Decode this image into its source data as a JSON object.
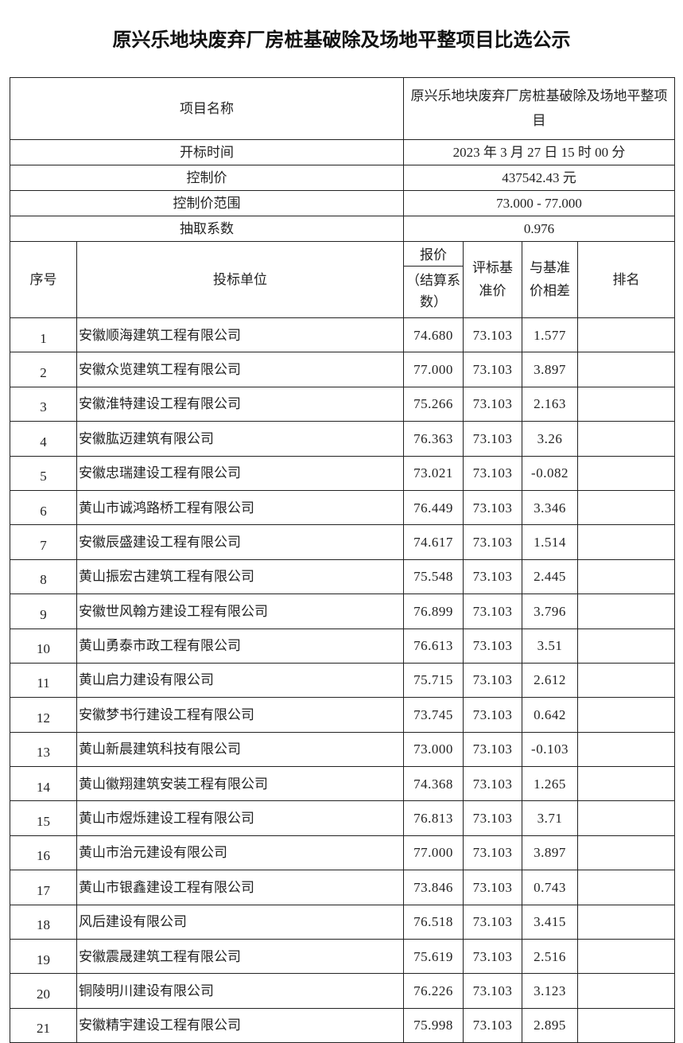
{
  "title": "原兴乐地块废弃厂房桩基破除及场地平整项目比选公示",
  "info": {
    "project_name_label": "项目名称",
    "project_name_value": "原兴乐地块废弃厂房桩基破除及场地平整项目",
    "open_time_label": "开标时间",
    "open_time_value": "2023 年 3 月 27 日  15 时 00 分",
    "control_price_label": "控制价",
    "control_price_value": "437542.43 元",
    "control_range_label": "控制价范围",
    "control_range_value": "73.000 - 77.000",
    "coefficient_label": "抽取系数",
    "coefficient_value": "0.976"
  },
  "headers": {
    "seq": "序号",
    "bidder": "投标单位",
    "price_top": "报价",
    "price_bottom": "（结算系数）",
    "base": "评标基准价",
    "diff": "与基准价相差",
    "rank": "排名"
  },
  "rows": [
    {
      "seq": "1",
      "bidder": "安徽顺海建筑工程有限公司",
      "price": "74.680",
      "base": "73.103",
      "diff": "1.577",
      "rank": ""
    },
    {
      "seq": "2",
      "bidder": "安徽众览建筑工程有限公司",
      "price": "77.000",
      "base": "73.103",
      "diff": "3.897",
      "rank": ""
    },
    {
      "seq": "3",
      "bidder": "安徽淮特建设工程有限公司",
      "price": "75.266",
      "base": "73.103",
      "diff": "2.163",
      "rank": ""
    },
    {
      "seq": "4",
      "bidder": "安徽肱迈建筑有限公司",
      "price": "76.363",
      "base": "73.103",
      "diff": "3.26",
      "rank": ""
    },
    {
      "seq": "5",
      "bidder": "安徽忠瑞建设工程有限公司",
      "price": "73.021",
      "base": "73.103",
      "diff": "-0.082",
      "rank": ""
    },
    {
      "seq": "6",
      "bidder": "黄山市诚鸿路桥工程有限公司",
      "price": "76.449",
      "base": "73.103",
      "diff": "3.346",
      "rank": ""
    },
    {
      "seq": "7",
      "bidder": "安徽辰盛建设工程有限公司",
      "price": "74.617",
      "base": "73.103",
      "diff": "1.514",
      "rank": ""
    },
    {
      "seq": "8",
      "bidder": "黄山振宏古建筑工程有限公司",
      "price": "75.548",
      "base": "73.103",
      "diff": "2.445",
      "rank": ""
    },
    {
      "seq": "9",
      "bidder": "安徽世风翰方建设工程有限公司",
      "price": "76.899",
      "base": "73.103",
      "diff": "3.796",
      "rank": ""
    },
    {
      "seq": "10",
      "bidder": "黄山勇泰市政工程有限公司",
      "price": "76.613",
      "base": "73.103",
      "diff": "3.51",
      "rank": ""
    },
    {
      "seq": "11",
      "bidder": "黄山启力建设有限公司",
      "price": "75.715",
      "base": "73.103",
      "diff": "2.612",
      "rank": ""
    },
    {
      "seq": "12",
      "bidder": "安徽梦书行建设工程有限公司",
      "price": "73.745",
      "base": "73.103",
      "diff": "0.642",
      "rank": ""
    },
    {
      "seq": "13",
      "bidder": "黄山新晨建筑科技有限公司",
      "price": "73.000",
      "base": "73.103",
      "diff": "-0.103",
      "rank": ""
    },
    {
      "seq": "14",
      "bidder": "黄山徽翔建筑安装工程有限公司",
      "price": "74.368",
      "base": "73.103",
      "diff": "1.265",
      "rank": ""
    },
    {
      "seq": "15",
      "bidder": "黄山市煜烁建设工程有限公司",
      "price": "76.813",
      "base": "73.103",
      "diff": "3.71",
      "rank": ""
    },
    {
      "seq": "16",
      "bidder": "黄山市治元建设有限公司",
      "price": "77.000",
      "base": "73.103",
      "diff": "3.897",
      "rank": ""
    },
    {
      "seq": "17",
      "bidder": "黄山市银鑫建设工程有限公司",
      "price": "73.846",
      "base": "73.103",
      "diff": "0.743",
      "rank": ""
    },
    {
      "seq": "18",
      "bidder": "风后建设有限公司",
      "price": "76.518",
      "base": "73.103",
      "diff": "3.415",
      "rank": ""
    },
    {
      "seq": "19",
      "bidder": "安徽震晟建筑工程有限公司",
      "price": "75.619",
      "base": "73.103",
      "diff": "2.516",
      "rank": ""
    },
    {
      "seq": "20",
      "bidder": "铜陵明川建设有限公司",
      "price": "76.226",
      "base": "73.103",
      "diff": "3.123",
      "rank": ""
    },
    {
      "seq": "21",
      "bidder": "安徽精宇建设工程有限公司",
      "price": "75.998",
      "base": "73.103",
      "diff": "2.895",
      "rank": ""
    }
  ]
}
